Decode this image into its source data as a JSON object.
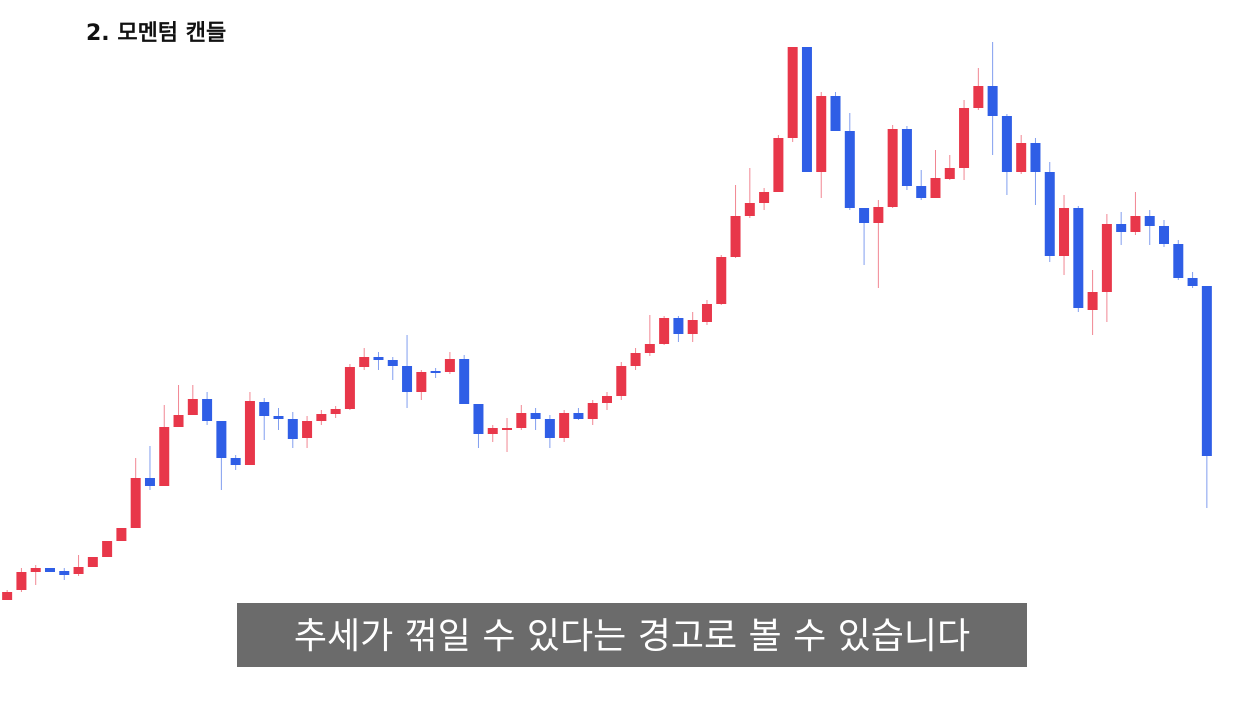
{
  "chart_data": {
    "type": "candlestick",
    "title": "2. 모멘텀 캔들",
    "caption": "추세가 꺾일 수 있다는 경고로 볼 수 있습니다",
    "up_color": "#e8374a",
    "down_color": "#2f5ee6",
    "ylim": [
      35,
      700
    ],
    "open": [
      100,
      110,
      128,
      132,
      129,
      126,
      133,
      143,
      159,
      172,
      222,
      214,
      273,
      285,
      301,
      279,
      242,
      235,
      298,
      284,
      281,
      262,
      279,
      286,
      291,
      333,
      343,
      340,
      334,
      308,
      329,
      328,
      341,
      296,
      266,
      270,
      272,
      287,
      281,
      262,
      287,
      281,
      297,
      304,
      334,
      347,
      356,
      382,
      366,
      378,
      396,
      443,
      484,
      497,
      508,
      562,
      653,
      528,
      604,
      569,
      492,
      477,
      493,
      571,
      514,
      502,
      521,
      532,
      592,
      614,
      584,
      528,
      557,
      528,
      444,
      492,
      390,
      408,
      476,
      468,
      484,
      474,
      456,
      422,
      414
    ],
    "high": [
      110,
      132,
      135,
      132,
      132,
      145,
      143,
      159,
      172,
      242,
      254,
      295,
      315,
      315,
      308,
      279,
      245,
      308,
      302,
      292,
      288,
      284,
      290,
      294,
      336,
      352,
      348,
      343,
      365,
      330,
      332,
      348,
      345,
      296,
      275,
      282,
      295,
      292,
      285,
      290,
      292,
      300,
      308,
      338,
      352,
      385,
      384,
      384,
      388,
      400,
      445,
      515,
      532,
      512,
      565,
      653,
      653,
      608,
      608,
      587,
      492,
      500,
      575,
      574,
      530,
      550,
      545,
      600,
      632,
      658,
      586,
      565,
      562,
      538,
      505,
      494,
      430,
      486,
      488,
      508,
      490,
      480,
      460,
      428,
      414
    ],
    "low": [
      100,
      108,
      115,
      128,
      120,
      124,
      133,
      143,
      159,
      172,
      210,
      214,
      273,
      285,
      275,
      210,
      230,
      235,
      260,
      270,
      252,
      252,
      275,
      282,
      290,
      330,
      330,
      320,
      292,
      300,
      322,
      326,
      296,
      252,
      258,
      248,
      270,
      270,
      252,
      258,
      280,
      275,
      290,
      300,
      330,
      344,
      355,
      358,
      358,
      375,
      395,
      442,
      482,
      490,
      508,
      558,
      528,
      502,
      569,
      490,
      435,
      412,
      492,
      510,
      500,
      502,
      520,
      520,
      590,
      545,
      505,
      526,
      495,
      438,
      425,
      388,
      365,
      378,
      455,
      465,
      455,
      453,
      420,
      412,
      192
    ],
    "close": [
      108,
      128,
      132,
      128,
      125,
      133,
      143,
      159,
      172,
      222,
      214,
      273,
      285,
      301,
      279,
      242,
      235,
      299,
      284,
      281,
      261,
      279,
      286,
      291,
      333,
      343,
      340,
      334,
      308,
      328,
      327,
      341,
      296,
      266,
      272,
      272,
      287,
      281,
      262,
      287,
      281,
      297,
      304,
      334,
      347,
      356,
      382,
      366,
      380,
      396,
      443,
      484,
      497,
      508,
      562,
      653,
      528,
      604,
      569,
      492,
      477,
      493,
      571,
      514,
      502,
      522,
      532,
      592,
      614,
      584,
      528,
      557,
      528,
      444,
      492,
      392,
      408,
      476,
      468,
      484,
      474,
      456,
      422,
      414,
      244
    ]
  }
}
